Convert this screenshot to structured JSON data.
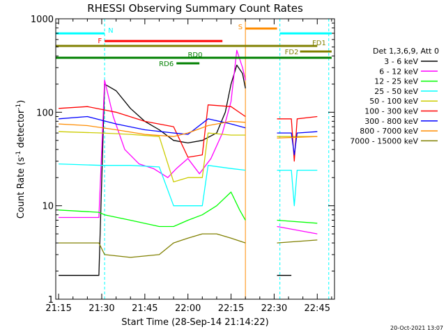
{
  "chart_data": {
    "type": "line",
    "title": "RHESSI Observing Summary Count Rates",
    "xlabel": "Start Time (28-Sep-14 21:14:22)",
    "ylabel": "Count Rate (s⁻¹ detector⁻¹)",
    "ylabel_main": "Count Rate (s",
    "ylabel_sup1": "-1",
    "ylabel_mid": " detector",
    "ylabel_sup2": "-1",
    "ylabel_end": ")",
    "footer": "20-Oct-2021 13:07",
    "y_scale": "log",
    "ylim": [
      1,
      1000
    ],
    "xlim": [
      "21:14",
      "22:51"
    ],
    "x_ticks": [
      "21:15",
      "21:30",
      "21:45",
      "22:00",
      "22:15",
      "22:30",
      "22:45"
    ],
    "y_ticks": [
      "1",
      "10",
      "100",
      "1000"
    ],
    "legend_placement": "right",
    "legend_title": "Det 1,3,6,9, Att 0",
    "series": [
      {
        "name": "3 - 6 keV",
        "color": "#000000",
        "points": [
          [
            "21:15",
            1.8
          ],
          [
            "21:29",
            1.8
          ],
          [
            "21:31",
            200
          ],
          [
            "21:35",
            170
          ],
          [
            "21:40",
            110
          ],
          [
            "21:45",
            80
          ],
          [
            "21:50",
            65
          ],
          [
            "21:55",
            50
          ],
          [
            "22:00",
            47
          ],
          [
            "22:05",
            50
          ],
          [
            "22:10",
            60
          ],
          [
            "22:13",
            100
          ],
          [
            "22:15",
            200
          ],
          [
            "22:17",
            320
          ],
          [
            "22:19",
            260
          ],
          [
            "22:20",
            180
          ]
        ],
        "points_b": [
          [
            "22:31",
            1.8
          ],
          [
            "22:36",
            1.8
          ]
        ]
      },
      {
        "name": "6 - 12 keV",
        "color": "#ff00ff",
        "points": [
          [
            "21:15",
            7.5
          ],
          [
            "21:29",
            7.5
          ],
          [
            "21:31",
            220
          ],
          [
            "21:34",
            90
          ],
          [
            "21:38",
            40
          ],
          [
            "21:43",
            28
          ],
          [
            "21:48",
            25
          ],
          [
            "21:53",
            20
          ],
          [
            "21:56",
            25
          ],
          [
            "22:00",
            32
          ],
          [
            "22:04",
            22
          ],
          [
            "22:08",
            32
          ],
          [
            "22:12",
            60
          ],
          [
            "22:15",
            130
          ],
          [
            "22:17",
            460
          ],
          [
            "22:19",
            300
          ],
          [
            "22:20",
            220
          ]
        ],
        "points_b": [
          [
            "22:31",
            6
          ],
          [
            "22:45",
            5
          ]
        ]
      },
      {
        "name": "12 - 25 keV",
        "color": "#00ff00",
        "points": [
          [
            "21:15",
            9
          ],
          [
            "21:29",
            8.5
          ],
          [
            "21:31",
            8
          ],
          [
            "21:40",
            7
          ],
          [
            "21:50",
            6
          ],
          [
            "21:55",
            6
          ],
          [
            "22:00",
            7
          ],
          [
            "22:05",
            8
          ],
          [
            "22:10",
            10
          ],
          [
            "22:15",
            14
          ],
          [
            "22:18",
            9
          ],
          [
            "22:20",
            7
          ]
        ],
        "points_b": [
          [
            "22:31",
            7
          ],
          [
            "22:45",
            6.5
          ]
        ]
      },
      {
        "name": "25 - 50 keV",
        "color": "#00ffff",
        "points": [
          [
            "21:15",
            28
          ],
          [
            "21:30",
            27
          ],
          [
            "21:40",
            27
          ],
          [
            "21:50",
            26
          ],
          [
            "21:55",
            10
          ],
          [
            "22:00",
            10
          ],
          [
            "22:05",
            10
          ],
          [
            "22:07",
            27
          ],
          [
            "22:15",
            25
          ],
          [
            "22:20",
            24
          ]
        ],
        "points_b": [
          [
            "22:31",
            24
          ],
          [
            "22:36",
            24
          ],
          [
            "22:37",
            10
          ],
          [
            "22:38",
            24
          ],
          [
            "22:45",
            24
          ]
        ]
      },
      {
        "name": "50 - 100 keV",
        "color": "#cccc00",
        "points": [
          [
            "21:15",
            62
          ],
          [
            "21:30",
            60
          ],
          [
            "21:40",
            58
          ],
          [
            "21:50",
            55
          ],
          [
            "21:55",
            18
          ],
          [
            "22:00",
            20
          ],
          [
            "22:05",
            20
          ],
          [
            "22:07",
            60
          ],
          [
            "22:15",
            57
          ],
          [
            "22:20",
            57
          ]
        ],
        "points_b": [
          [
            "22:31",
            55
          ],
          [
            "22:45",
            55
          ]
        ]
      },
      {
        "name": "100 - 300 keV",
        "color": "#ff0000",
        "points": [
          [
            "21:15",
            110
          ],
          [
            "21:25",
            115
          ],
          [
            "21:35",
            100
          ],
          [
            "21:45",
            80
          ],
          [
            "21:55",
            70
          ],
          [
            "22:00",
            33
          ],
          [
            "22:05",
            35
          ],
          [
            "22:07",
            120
          ],
          [
            "22:15",
            115
          ],
          [
            "22:20",
            90
          ]
        ],
        "points_b": [
          [
            "22:31",
            85
          ],
          [
            "22:36",
            85
          ],
          [
            "22:37",
            30
          ],
          [
            "22:38",
            85
          ],
          [
            "22:45",
            90
          ]
        ]
      },
      {
        "name": "300 - 800 keV",
        "color": "#0000ff",
        "points": [
          [
            "21:15",
            85
          ],
          [
            "21:25",
            90
          ],
          [
            "21:35",
            75
          ],
          [
            "21:45",
            65
          ],
          [
            "21:55",
            60
          ],
          [
            "22:00",
            58
          ],
          [
            "22:07",
            85
          ],
          [
            "22:15",
            75
          ],
          [
            "22:20",
            68
          ]
        ],
        "points_b": [
          [
            "22:31",
            60
          ],
          [
            "22:36",
            60
          ],
          [
            "22:37",
            35
          ],
          [
            "22:38",
            60
          ],
          [
            "22:45",
            62
          ]
        ]
      },
      {
        "name": "800 - 7000 keV",
        "color": "#ff8c00",
        "points": [
          [
            "21:15",
            75
          ],
          [
            "21:25",
            72
          ],
          [
            "21:35",
            65
          ],
          [
            "21:45",
            58
          ],
          [
            "21:55",
            55
          ],
          [
            "22:00",
            60
          ],
          [
            "22:07",
            72
          ],
          [
            "22:15",
            80
          ],
          [
            "22:20",
            78
          ]
        ],
        "points_b": [
          [
            "22:31",
            53
          ],
          [
            "22:45",
            55
          ]
        ]
      },
      {
        "name": "7000 - 15000 keV",
        "color": "#808000",
        "points": [
          [
            "21:15",
            4
          ],
          [
            "21:29",
            4
          ],
          [
            "21:31",
            3
          ],
          [
            "21:40",
            2.8
          ],
          [
            "21:50",
            3
          ],
          [
            "21:55",
            4
          ],
          [
            "22:00",
            4.5
          ],
          [
            "22:05",
            5
          ],
          [
            "22:10",
            5
          ],
          [
            "22:15",
            4.5
          ],
          [
            "22:20",
            4
          ]
        ],
        "points_b": [
          [
            "22:31",
            4
          ],
          [
            "22:45",
            4.3
          ]
        ]
      }
    ],
    "segments": [
      {
        "label": "N",
        "color": "#00ffff",
        "start": "21:14",
        "end": "21:31",
        "level": 0
      },
      {
        "label": "",
        "color": "#00ffff",
        "start": "22:32",
        "end": "22:50",
        "level": 0
      },
      {
        "label": "S",
        "color": "#ff8c00",
        "start": "22:20",
        "end": "22:31",
        "level": 1
      },
      {
        "label": "F",
        "color": "#ff0000",
        "start": "21:31",
        "end": "22:12",
        "level": 2
      },
      {
        "label": "FD1",
        "color": "#808000",
        "start": "21:14",
        "end": "22:45",
        "level": 3
      },
      {
        "label": "FD2",
        "color": "#808000",
        "start": "22:39",
        "end": "22:50",
        "level": 4
      },
      {
        "label": "RD0",
        "color": "#008000",
        "start": "21:14",
        "end": "22:50",
        "level": 5
      },
      {
        "label": "RD6",
        "color": "#008000",
        "start": "21:56",
        "end": "22:04",
        "level": 6
      }
    ],
    "vlines": [
      {
        "time": "21:31",
        "color": "#00ffff"
      },
      {
        "time": "22:20",
        "color": "#ff8c00"
      },
      {
        "time": "22:32",
        "color": "#00ffff"
      },
      {
        "time": "22:49",
        "color": "#00ffff"
      }
    ]
  }
}
